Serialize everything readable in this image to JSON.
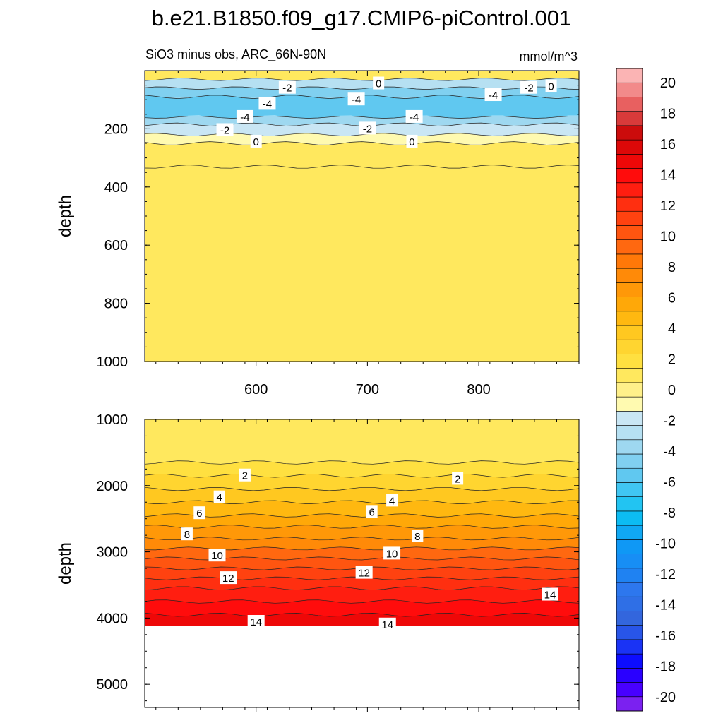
{
  "chart_data": {
    "type": "heatmap",
    "title": "b.e21.B1850.f09_g17.CMIP6-piControl.001",
    "subtitle_left": "SiO3 minus obs, ARC_66N-90N",
    "subtitle_right": "mmol/m^3",
    "xlim": [
      500,
      890
    ],
    "x_ticks": [
      600,
      700,
      800
    ],
    "x_tick_labels": [
      "600",
      "700",
      "800"
    ],
    "colorbar": {
      "levels": [
        -20,
        -18,
        -16,
        -14,
        -12,
        -10,
        -8,
        -6,
        -4,
        -2,
        0,
        2,
        4,
        6,
        8,
        10,
        12,
        14,
        16,
        18,
        20
      ],
      "tick_labels": [
        "-20",
        "-18",
        "-16",
        "-14",
        "-12",
        "-10",
        "-8",
        "-6",
        "-4",
        "-2",
        "0",
        "2",
        "4",
        "6",
        "8",
        "10",
        "12",
        "14",
        "16",
        "18",
        "20"
      ],
      "colors": [
        "#7b21f0",
        "#4800ff",
        "#2a00ff",
        "#0d0dff",
        "#1a33f5",
        "#2855e8",
        "#3366dd",
        "#2f6fe6",
        "#2d77ee",
        "#1f82f2",
        "#178ef5",
        "#0f98f5",
        "#10a8f3",
        "#0cbcf3",
        "#22c4f2",
        "#40c6f2",
        "#60c8f0",
        "#80d0f0",
        "#9ed8f0",
        "#b6e0f2",
        "#c9e6f4",
        "#fffab0",
        "#fff08a",
        "#ffe85e",
        "#ffe040",
        "#ffd530",
        "#ffc820",
        "#ffb810",
        "#ffa808",
        "#ff9808",
        "#ff8a08",
        "#ff7808",
        "#ff6810",
        "#ff5510",
        "#ff4210",
        "#ff2f10",
        "#ff1e10",
        "#ff0c0c",
        "#ee0808",
        "#dd0808",
        "#cc0c0c",
        "#d93a3a",
        "#e86060",
        "#f28a8a",
        "#fbb4b4"
      ]
    },
    "panels": [
      {
        "name": "upper",
        "ylabel": "depth",
        "ylim": [
          0,
          1000
        ],
        "y_ticks": [
          200,
          400,
          600,
          800,
          1000
        ],
        "y_tick_labels": [
          "200",
          "400",
          "600",
          "800",
          "1000"
        ],
        "layers": [
          {
            "top": 0,
            "bottom": 30,
            "value": 1
          },
          {
            "top": 30,
            "bottom": 60,
            "value": -2.5
          },
          {
            "top": 60,
            "bottom": 90,
            "value": -4.5
          },
          {
            "top": 90,
            "bottom": 160,
            "value": -5.5
          },
          {
            "top": 160,
            "bottom": 185,
            "value": -3.5
          },
          {
            "top": 185,
            "bottom": 220,
            "value": -1.5
          },
          {
            "top": 220,
            "bottom": 250,
            "value": -0.5
          },
          {
            "top": 250,
            "bottom": 330,
            "value": 0.5
          },
          {
            "top": 330,
            "bottom": 1000,
            "value": 1.2
          }
        ],
        "contour_labels": [
          {
            "text": "-2",
            "x": 628,
            "y": 60
          },
          {
            "text": "-4",
            "x": 610,
            "y": 115
          },
          {
            "text": "-4",
            "x": 590,
            "y": 160
          },
          {
            "text": "-2",
            "x": 572,
            "y": 205
          },
          {
            "text": "0",
            "x": 600,
            "y": 245
          },
          {
            "text": "0",
            "x": 710,
            "y": 45
          },
          {
            "text": "-4",
            "x": 690,
            "y": 100
          },
          {
            "text": "-4",
            "x": 742,
            "y": 160
          },
          {
            "text": "-2",
            "x": 700,
            "y": 200
          },
          {
            "text": "0",
            "x": 740,
            "y": 245
          },
          {
            "text": "-4",
            "x": 813,
            "y": 85
          },
          {
            "text": "-2",
            "x": 845,
            "y": 60
          },
          {
            "text": "0",
            "x": 865,
            "y": 55
          }
        ]
      },
      {
        "name": "lower",
        "ylabel": "depth",
        "ylim": [
          1000,
          5350
        ],
        "y_ticks": [
          1000,
          2000,
          3000,
          4000,
          5000
        ],
        "y_tick_labels": [
          "1000",
          "2000",
          "3000",
          "4000",
          "5000"
        ],
        "bottom_depth": 4120,
        "layers": [
          {
            "top": 1000,
            "bottom": 1650,
            "value": 0.5
          },
          {
            "top": 1650,
            "bottom": 1850,
            "value": 1.5
          },
          {
            "top": 1850,
            "bottom": 2050,
            "value": 2.5
          },
          {
            "top": 2050,
            "bottom": 2250,
            "value": 3.5
          },
          {
            "top": 2250,
            "bottom": 2450,
            "value": 4.5
          },
          {
            "top": 2450,
            "bottom": 2620,
            "value": 5.5
          },
          {
            "top": 2620,
            "bottom": 2800,
            "value": 6.5
          },
          {
            "top": 2800,
            "bottom": 2950,
            "value": 7.5
          },
          {
            "top": 2950,
            "bottom": 3100,
            "value": 8.5
          },
          {
            "top": 3100,
            "bottom": 3250,
            "value": 9.5
          },
          {
            "top": 3250,
            "bottom": 3400,
            "value": 10.5
          },
          {
            "top": 3400,
            "bottom": 3550,
            "value": 11.5
          },
          {
            "top": 3550,
            "bottom": 3750,
            "value": 12.5
          },
          {
            "top": 3750,
            "bottom": 3950,
            "value": 13.5
          },
          {
            "top": 3950,
            "bottom": 4120,
            "value": 14.5
          }
        ],
        "contour_labels": [
          {
            "text": "2",
            "x": 590,
            "y": 1850
          },
          {
            "text": "4",
            "x": 567,
            "y": 2180
          },
          {
            "text": "6",
            "x": 549,
            "y": 2420
          },
          {
            "text": "8",
            "x": 538,
            "y": 2740
          },
          {
            "text": "10",
            "x": 565,
            "y": 3060
          },
          {
            "text": "12",
            "x": 575,
            "y": 3400
          },
          {
            "text": "14",
            "x": 600,
            "y": 4060
          },
          {
            "text": "2",
            "x": 781,
            "y": 1900
          },
          {
            "text": "4",
            "x": 722,
            "y": 2230
          },
          {
            "text": "6",
            "x": 704,
            "y": 2400
          },
          {
            "text": "8",
            "x": 745,
            "y": 2770
          },
          {
            "text": "10",
            "x": 722,
            "y": 3030
          },
          {
            "text": "12",
            "x": 697,
            "y": 3320
          },
          {
            "text": "14",
            "x": 864,
            "y": 3650
          },
          {
            "text": "14",
            "x": 718,
            "y": 4100
          }
        ]
      }
    ]
  }
}
